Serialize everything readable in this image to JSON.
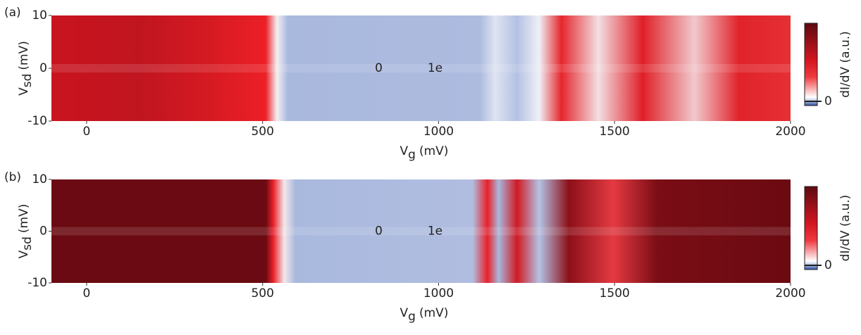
{
  "chart_data": [
    {
      "type": "heatmap",
      "panel_label": "(a)",
      "xlabel": [
        "V",
        "g",
        "(mV)"
      ],
      "ylabel": [
        "V",
        "sd",
        "(mV)"
      ],
      "xlim": [
        -100,
        2000
      ],
      "ylim": [
        -10,
        10
      ],
      "xticks": [
        0,
        500,
        1000,
        1500,
        2000
      ],
      "yticks": [
        -10,
        0,
        10
      ],
      "annotations": [
        "0",
        "1e"
      ],
      "colorbar_label": "dI/dV (a.u.)",
      "colorbar_ticks": [
        0
      ]
    },
    {
      "type": "heatmap",
      "panel_label": "(b)",
      "xlabel": [
        "V",
        "g",
        "(mV)"
      ],
      "ylabel": [
        "V",
        "sd",
        "(mV)"
      ],
      "xlim": [
        -100,
        2000
      ],
      "ylim": [
        -10,
        10
      ],
      "xticks": [
        0,
        500,
        1000,
        1500,
        2000
      ],
      "yticks": [
        -10,
        0,
        10
      ],
      "annotations": [
        "0",
        "1e"
      ],
      "colorbar_label": "dI/dV (a.u.)",
      "colorbar_ticks": [
        0
      ]
    }
  ]
}
